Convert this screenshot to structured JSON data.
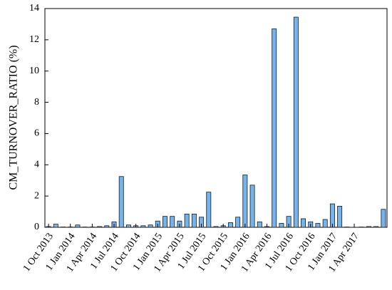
{
  "chart_data": {
    "type": "bar",
    "y_label": "CM_TURNOVER_RATIO (%)",
    "categories": [
      "1 Oct 2013",
      null,
      null,
      "1 Jan 2014",
      null,
      null,
      "1 Apr 2014",
      null,
      null,
      "1 Jul 2014",
      null,
      null,
      "1 Oct 2014",
      null,
      null,
      "1 Jan 2015",
      null,
      null,
      "1 Apr 2015",
      null,
      null,
      "1 Jul 2015",
      null,
      null,
      "1 Oct 2015",
      null,
      null,
      "1 Jan 2016",
      null,
      null,
      "1 Apr 2016",
      null,
      null,
      "1 Jul 2016",
      null,
      null,
      "1 Oct 2016",
      null,
      null,
      "1 Jan 2017",
      null,
      null,
      "1 Apr 2017",
      null,
      null,
      null,
      null
    ],
    "values": [
      0.05,
      0.2,
      0.02,
      0.02,
      0.15,
      0.02,
      0.02,
      0.05,
      0.1,
      0.35,
      3.25,
      0.15,
      0.1,
      0.1,
      0.15,
      0.4,
      0.7,
      0.7,
      0.4,
      0.85,
      0.85,
      0.65,
      2.25,
      0.05,
      0.1,
      0.3,
      0.65,
      3.35,
      2.7,
      0.35,
      0.05,
      12.7,
      0.25,
      0.7,
      13.45,
      0.55,
      0.35,
      0.25,
      0.5,
      1.5,
      1.35,
      0.02,
      0,
      0.02,
      0.05,
      0.05,
      1.15
    ],
    "color": "#74b4ee",
    "ylim": [
      0,
      14
    ],
    "yticks": [
      0,
      2,
      4,
      6,
      8,
      10,
      12,
      14
    ]
  }
}
